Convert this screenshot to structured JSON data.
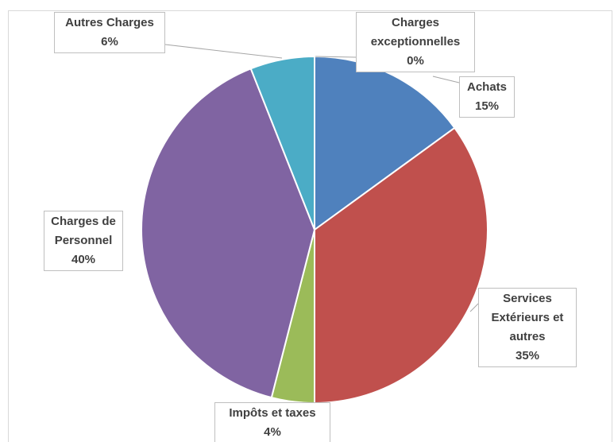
{
  "chart_data": {
    "type": "pie",
    "categories": [
      "Achats",
      "Services Extérieurs et autres",
      "Impôts et taxes",
      "Charges de Personnel",
      "Autres Charges",
      "Charges exceptionnelles"
    ],
    "values": [
      15,
      35,
      4,
      40,
      6,
      0
    ],
    "value_labels": [
      "15%",
      "35%",
      "4%",
      "40%",
      "6%",
      "0%"
    ],
    "colors": [
      "#4f81bd",
      "#c0504d",
      "#9bbb59",
      "#8064a2",
      "#4bacc6",
      "#f79646"
    ]
  }
}
